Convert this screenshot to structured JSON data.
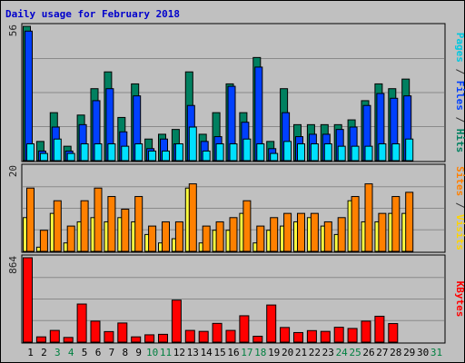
{
  "chart_data": {
    "type": "bar",
    "title": "Daily usage for February 2018",
    "days": [
      "1",
      "2",
      "3",
      "4",
      "5",
      "6",
      "7",
      "8",
      "9",
      "10",
      "11",
      "12",
      "13",
      "14",
      "15",
      "16",
      "17",
      "18",
      "19",
      "20",
      "21",
      "22",
      "23",
      "24",
      "25",
      "26",
      "27",
      "28",
      "29",
      "30",
      "31"
    ],
    "day_colors": [
      "#000000",
      "#000000",
      "#008040",
      "#008040",
      "#000000",
      "#000000",
      "#000000",
      "#000000",
      "#000000",
      "#008040",
      "#008040",
      "#000000",
      "#000000",
      "#000000",
      "#000000",
      "#000000",
      "#008040",
      "#008040",
      "#000000",
      "#000000",
      "#000000",
      "#000000",
      "#000000",
      "#008040",
      "#008040",
      "#000000",
      "#000000",
      "#000000",
      "#000000",
      "#000000",
      "#008040"
    ],
    "panels": [
      {
        "name": "hits_files_pages",
        "ymax_label": "56",
        "ylim": [
          0,
          56
        ],
        "side_labels": [
          {
            "text": "Pages",
            "color": "#00c8e0"
          },
          {
            "text": " / ",
            "color": "#333333"
          },
          {
            "text": "Files",
            "color": "#0040ff"
          },
          {
            "text": " / ",
            "color": "#333333"
          },
          {
            "text": "Hits",
            "color": "#008060"
          }
        ],
        "series": [
          {
            "name": "Hits",
            "color": "#008060",
            "values": [
              56,
              8,
              20,
              6,
              19,
              30,
              37,
              18,
              32,
              9,
              11,
              13,
              37,
              11,
              20,
              32,
              20,
              43,
              8,
              30,
              15,
              15,
              15,
              15,
              17,
              25,
              32,
              30,
              34,
              0,
              0
            ]
          },
          {
            "name": "Files",
            "color": "#0040ff",
            "values": [
              54,
              4,
              14,
              4,
              15,
              25,
              30,
              12,
              27,
              5,
              9,
              7,
              23,
              8,
              10,
              31,
              16,
              39,
              5,
              20,
              10,
              11,
              11,
              13,
              14,
              23,
              28,
              26,
              27,
              0,
              0
            ]
          },
          {
            "name": "Pages",
            "color": "#00e0ff",
            "values": [
              7,
              3,
              9,
              3,
              7,
              7,
              7,
              6,
              7,
              4,
              4,
              7,
              14,
              4,
              7,
              7,
              9,
              7,
              3,
              8,
              7,
              7,
              7,
              6,
              6,
              6,
              7,
              7,
              9,
              0,
              0
            ]
          }
        ]
      },
      {
        "name": "visits_sites",
        "ymax_label": "20",
        "ylim": [
          0,
          20
        ],
        "side_labels": [
          {
            "text": "Sites",
            "color": "#ff8000"
          },
          {
            "text": " / ",
            "color": "#333333"
          },
          {
            "text": "Visits",
            "color": "#ffd400"
          }
        ],
        "series": [
          {
            "name": "Visits",
            "color": "#ffff40",
            "values": [
              8,
              1,
              9,
              2,
              7,
              8,
              7,
              8,
              7,
              4,
              2,
              3,
              15,
              2,
              5,
              5,
              9,
              2,
              5,
              6,
              7,
              8,
              6,
              4,
              12,
              7,
              7,
              9,
              9,
              0,
              0
            ]
          },
          {
            "name": "Sites",
            "color": "#ff8000",
            "values": [
              15,
              5,
              12,
              6,
              12,
              15,
              13,
              10,
              13,
              6,
              7,
              7,
              16,
              6,
              7,
              8,
              12,
              6,
              8,
              9,
              9,
              9,
              7,
              8,
              13,
              16,
              9,
              13,
              14,
              0,
              0
            ]
          }
        ]
      },
      {
        "name": "kbytes",
        "ymax_label": "864",
        "ylim": [
          0,
          864
        ],
        "side_labels": [
          {
            "text": "KBytes",
            "color": "#ff0000"
          }
        ],
        "series": [
          {
            "name": "KBytes",
            "color": "#ff0000",
            "values": [
              864,
              54,
              120,
              48,
              390,
              215,
              108,
              196,
              54,
              75,
              80,
              430,
              120,
              110,
              192,
              120,
              270,
              60,
              380,
              150,
              98,
              118,
              110,
              152,
              140,
              215,
              265,
              190,
              0,
              0,
              0
            ]
          }
        ]
      }
    ]
  }
}
